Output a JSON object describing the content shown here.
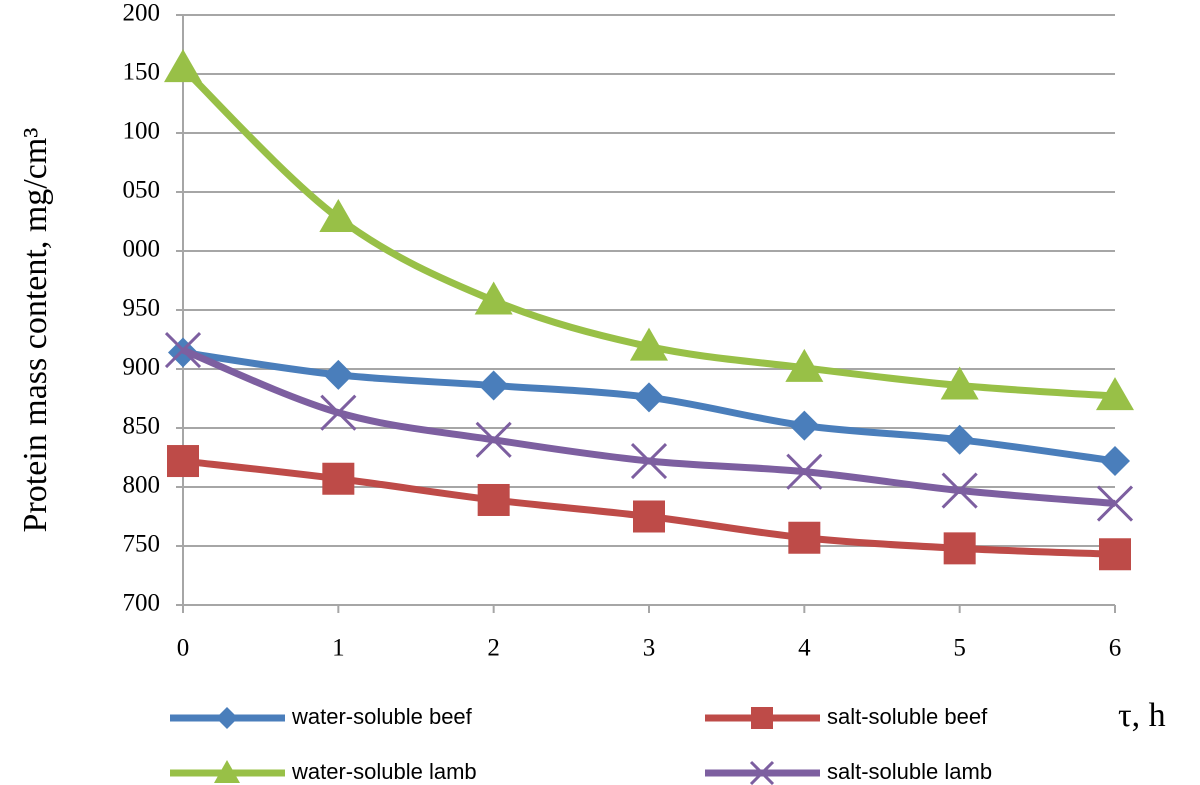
{
  "chart_data": {
    "type": "line",
    "y_label": "Protein mass content, mg/cm³",
    "x_label": "τ, h",
    "x": [
      0,
      1,
      2,
      3,
      4,
      5,
      6
    ],
    "xlim": [
      0,
      6
    ],
    "xticks": [
      0,
      1,
      2,
      3,
      4,
      5,
      6
    ],
    "ylim": [
      700,
      1200
    ],
    "yticks": [
      700,
      750,
      800,
      850,
      900,
      950,
      {
        "value": 1000,
        "label": "000"
      },
      {
        "value": 1050,
        "label": "050"
      },
      {
        "value": 1100,
        "label": "100"
      },
      {
        "value": 1150,
        "label": "150"
      },
      {
        "value": 1200,
        "label": "200"
      }
    ],
    "grid": true,
    "series": [
      {
        "name": "water-soluble beef",
        "color": "#4a7ebb",
        "marker": "diamond",
        "values": [
          914,
          895,
          886,
          876,
          852,
          840,
          822
        ]
      },
      {
        "name": "salt-soluble beef",
        "color": "#be4b48",
        "marker": "square",
        "values": [
          822,
          807,
          789,
          775,
          757,
          748,
          743
        ]
      },
      {
        "name": "water-soluble lamb",
        "color": "#98c047",
        "marker": "triangle",
        "values": [
          1155,
          1028,
          958,
          919,
          901,
          886,
          877
        ]
      },
      {
        "name": "salt-soluble lamb",
        "color": "#7d5fa0",
        "marker": "x",
        "values": [
          916,
          863,
          840,
          822,
          813,
          797,
          786
        ]
      }
    ]
  }
}
